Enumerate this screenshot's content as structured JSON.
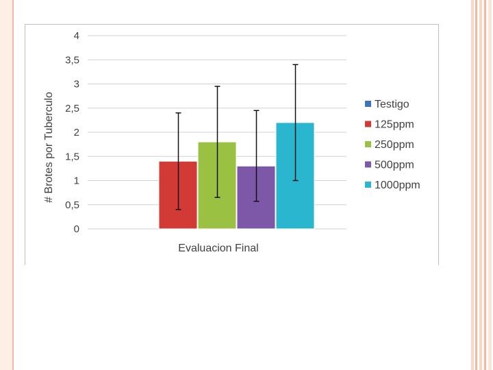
{
  "slide": {
    "accent_color": "#f36f21",
    "stripe_color": "#f6b7a0"
  },
  "chart_data": {
    "type": "bar",
    "title": "",
    "xlabel": "Evaluacion Final",
    "ylabel": "# Brotes por Tuberculo",
    "categories": [
      "Evaluacion Final"
    ],
    "ylim": [
      0,
      4
    ],
    "yticks": [
      "0",
      "0,5",
      "1",
      "1,5",
      "2",
      "2,5",
      "3",
      "3,5",
      "4"
    ],
    "grid": true,
    "legend_position": "right",
    "series": [
      {
        "name": "Testigo",
        "value": 0,
        "err_low": null,
        "err_high": null,
        "color": "#3f74b8"
      },
      {
        "name": "125ppm",
        "value": 1.4,
        "err_low": 0.4,
        "err_high": 2.4,
        "color": "#d23a35"
      },
      {
        "name": "250ppm",
        "value": 1.8,
        "err_low": 0.65,
        "err_high": 2.95,
        "color": "#9bc142"
      },
      {
        "name": "500ppm",
        "value": 1.3,
        "err_low": 0.57,
        "err_high": 2.45,
        "color": "#7d57a8"
      },
      {
        "name": "1000ppm",
        "value": 2.2,
        "err_low": 1.0,
        "err_high": 3.4,
        "color": "#2bb6cf"
      }
    ]
  }
}
